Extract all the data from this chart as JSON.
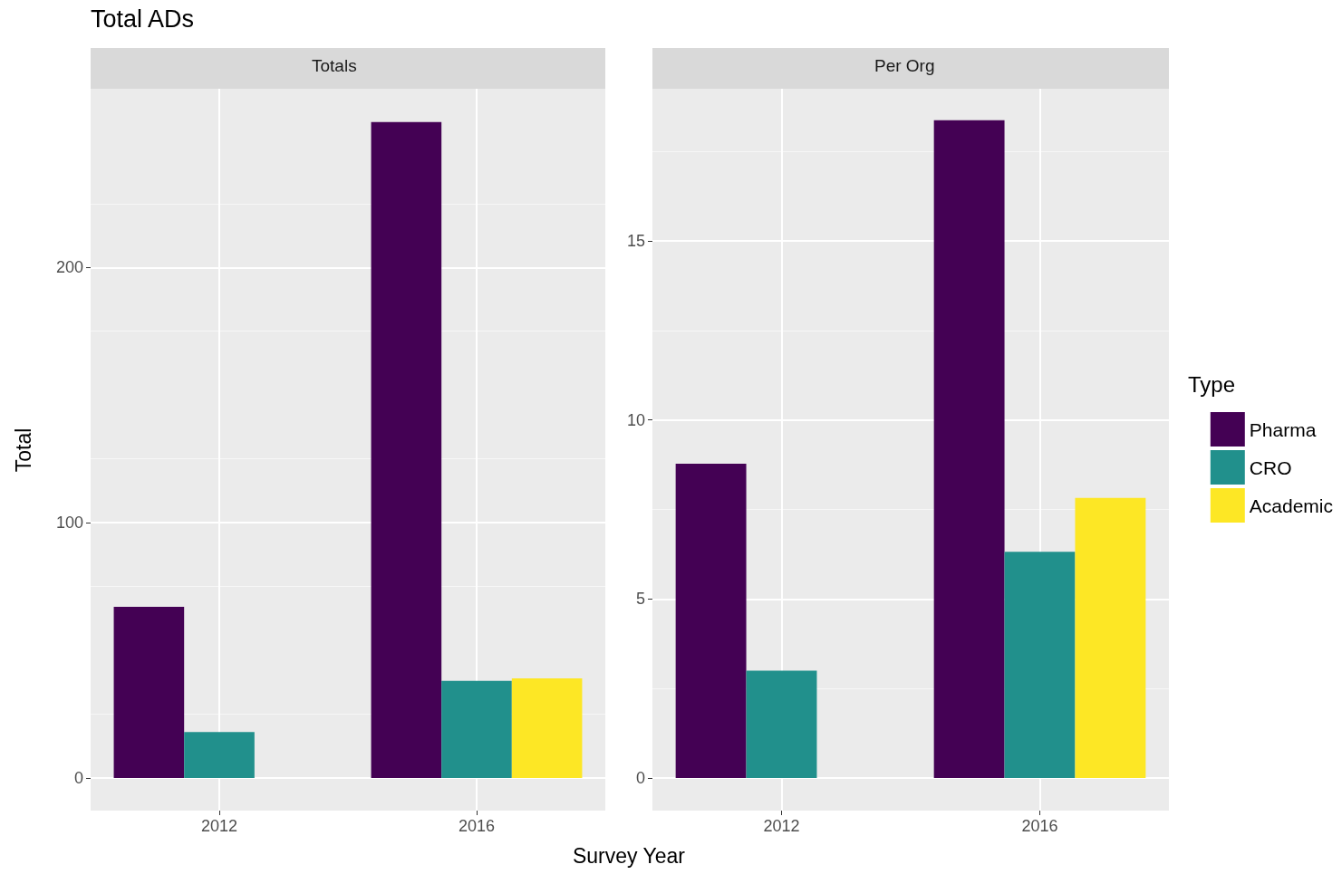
{
  "chart_data": [
    {
      "type": "bar",
      "title": "Total ADs",
      "subtitle": "Totals",
      "xlabel": "Survey Year",
      "ylabel": "Total",
      "categories": [
        "2012",
        "2016"
      ],
      "series": [
        {
          "color": "#440154",
          "values": [
            67,
            257
          ]
        },
        {
          "color": "#21908c",
          "values": [
            18,
            38
          ]
        },
        {
          "color": "#fde725",
          "values": [
            null,
            39
          ]
        }
      ],
      "ylim": [
        -12.8,
        270
      ],
      "yticks": [
        0,
        100,
        200
      ],
      "grid": true
    },
    {
      "type": "bar",
      "subtitle": "Per Org",
      "legend_title": "Type",
      "legend": "right",
      "categories": [
        "2012",
        "2016"
      ],
      "series": [
        {
          "name": "Pharma",
          "color": "#440154",
          "values": [
            8.78,
            18.37
          ]
        },
        {
          "name": "CRO",
          "color": "#21908c",
          "values": [
            3,
            6.32
          ]
        },
        {
          "name": "Academic",
          "color": "#fde725",
          "values": [
            null,
            7.82
          ]
        }
      ],
      "ylim": [
        -0.91,
        19.25
      ],
      "yticks": [
        0,
        5,
        10,
        15
      ],
      "grid": true
    }
  ]
}
